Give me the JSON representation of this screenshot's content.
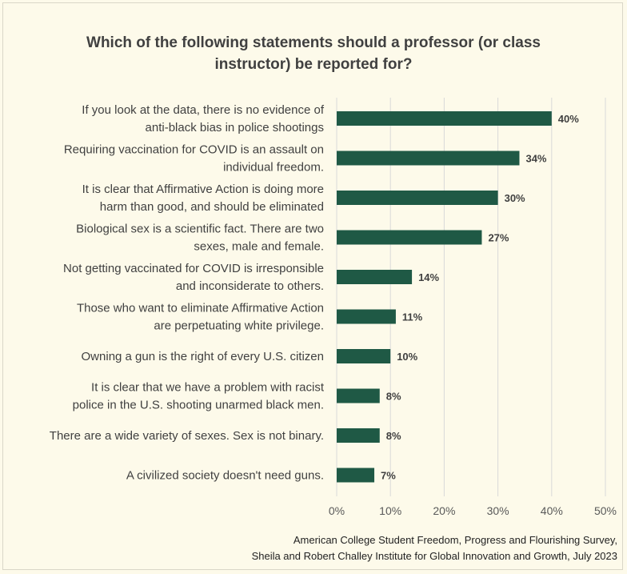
{
  "chart_data": {
    "type": "bar",
    "orientation": "horizontal",
    "title_lines": [
      "Which of the following statements should a professor (or class",
      "instructor) be reported for?"
    ],
    "categories": [
      [
        "If you look at the data, there is no evidence of",
        "anti-black bias in police shootings"
      ],
      [
        "Requiring vaccination for COVID is an assault on",
        "individual freedom."
      ],
      [
        "It is clear that Affirmative Action is doing more",
        "harm than good, and should be eliminated"
      ],
      [
        "Biological sex is a scientific fact. There are two",
        "sexes, male and female."
      ],
      [
        "Not getting vaccinated for COVID is irresponsible",
        "and inconsiderate to others."
      ],
      [
        "Those who want to eliminate Affirmative Action",
        "are perpetuating white privilege."
      ],
      [
        "Owning a gun is the right of every U.S. citizen"
      ],
      [
        "It is clear that we have a problem with racist",
        "police in the U.S. shooting unarmed black men."
      ],
      [
        "There are a wide variety of sexes. Sex is not binary."
      ],
      [
        "A civilized society doesn't need guns."
      ]
    ],
    "values": [
      40,
      34,
      30,
      27,
      14,
      11,
      10,
      8,
      8,
      7
    ],
    "data_labels": [
      "40%",
      "34%",
      "30%",
      "27%",
      "14%",
      "11%",
      "10%",
      "8%",
      "8%",
      "7%"
    ],
    "x_ticks": [
      "0%",
      "10%",
      "20%",
      "30%",
      "40%",
      "50%"
    ],
    "xlim": [
      0,
      50
    ],
    "bar_color": "#1f5945",
    "grid": true,
    "source_lines": [
      "American College Student Freedom, Progress and Flourishing Survey,",
      "Sheila and Robert Challey Institute for Global Innovation and Growth, July 2023"
    ]
  }
}
